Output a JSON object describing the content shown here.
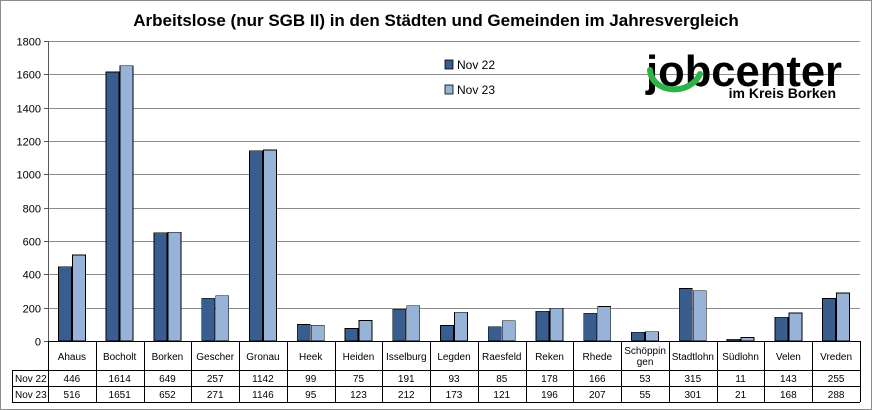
{
  "chart_data": {
    "type": "bar",
    "title": "Arbeitslose (nur SGB II) in den Städten und Gemeinden im Jahresvergleich",
    "xlabel": "",
    "ylabel": "",
    "ylim": [
      0,
      1800
    ],
    "yticks": [
      "0",
      "200",
      "400",
      "600",
      "800",
      "1000",
      "1200",
      "1400",
      "1600",
      "1800"
    ],
    "grid": true,
    "legend_position": "top-center",
    "categories": [
      "Ahaus",
      "Bocholt",
      "Borken",
      "Gescher",
      "Gronau",
      "Heek",
      "Heiden",
      "Isselburg",
      "Legden",
      "Raesfeld",
      "Reken",
      "Rhede",
      "Schöppin gen",
      "Stadtlohn",
      "Südlohn",
      "Velen",
      "Vreden"
    ],
    "category_lines": [
      [
        "Ahaus"
      ],
      [
        "Bocholt"
      ],
      [
        "Borken"
      ],
      [
        "Gescher"
      ],
      [
        "Gronau"
      ],
      [
        "Heek"
      ],
      [
        "Heiden"
      ],
      [
        "Isselburg"
      ],
      [
        "Legden"
      ],
      [
        "Raesfeld"
      ],
      [
        "Reken"
      ],
      [
        "Rhede"
      ],
      [
        "Schöppin",
        "gen"
      ],
      [
        "Stadtlohn"
      ],
      [
        "Südlohn"
      ],
      [
        "Velen"
      ],
      [
        "Vreden"
      ]
    ],
    "series": [
      {
        "name": "Nov 22",
        "color": "#3A5D8F",
        "values": [
          446,
          1614,
          649,
          257,
          1142,
          99,
          75,
          191,
          93,
          85,
          178,
          166,
          53,
          315,
          11,
          143,
          255
        ]
      },
      {
        "name": "Nov 23",
        "color": "#98B3D8",
        "values": [
          516,
          1651,
          652,
          271,
          1146,
          95,
          123,
          212,
          173,
          121,
          196,
          207,
          55,
          301,
          21,
          168,
          288
        ]
      }
    ]
  },
  "logo": {
    "main": "jobcenter",
    "sub": "im Kreis Borken",
    "accent_color": "#2DB34A"
  }
}
